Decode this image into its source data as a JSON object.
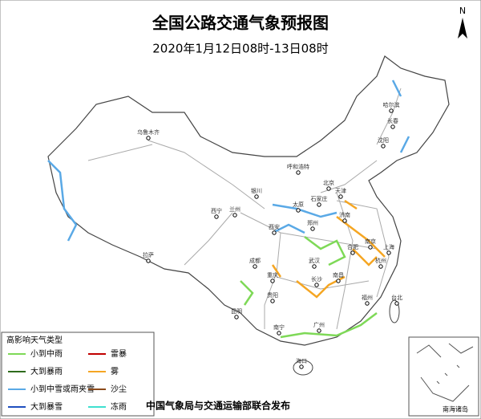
{
  "map": {
    "title": "全国公路交通气象预报图",
    "subtitle": "2020年1月12日08时-13日08时",
    "north": "N",
    "legend": {
      "title": "高影响天气类型",
      "items": [
        {
          "label": "小到中雨",
          "color": "#7ed957"
        },
        {
          "label": "大到暴雨",
          "color": "#2e6b1c"
        },
        {
          "label": "小到中雪或雨夹雪",
          "color": "#5aa9e6"
        },
        {
          "label": "大到暴雪",
          "color": "#1f4fbf"
        },
        {
          "label": "雷暴",
          "color": "#c00000"
        },
        {
          "label": "雾",
          "color": "#f5a623"
        },
        {
          "label": "沙尘",
          "color": "#8b4a1a"
        },
        {
          "label": "冻雨",
          "color": "#3fe0d0"
        }
      ]
    },
    "cities": [
      "乌鲁木齐",
      "哈尔滨",
      "长春",
      "沈阳",
      "呼和浩特",
      "北京",
      "天津",
      "石家庄",
      "太原",
      "银川",
      "兰州",
      "西宁",
      "西安",
      "郑州",
      "济南",
      "南京",
      "合肥",
      "上海",
      "武汉",
      "成都",
      "重庆",
      "长沙",
      "南昌",
      "杭州",
      "福州",
      "贵阳",
      "昆明",
      "拉萨",
      "南宁",
      "广州",
      "台北",
      "海口"
    ],
    "inset_label": "南海诸岛",
    "footer": "中国气象局与交通运输部联合发布"
  }
}
